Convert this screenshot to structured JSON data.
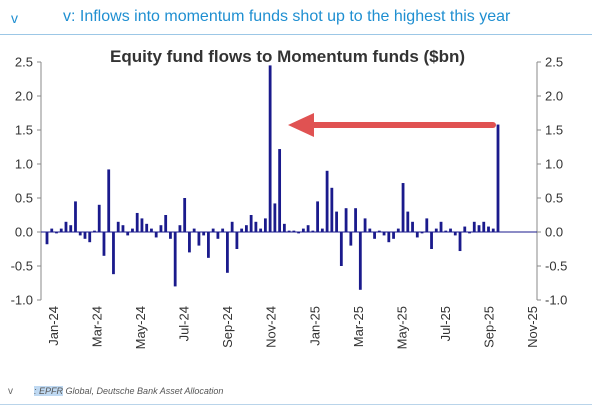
{
  "header": {
    "letter": "v",
    "title": "v: Inflows into momentum funds shot up to the highest this year"
  },
  "chart_data": {
    "type": "bar",
    "title": "Equity fund flows to Momentum funds ($bn)",
    "ylim": [
      -1.0,
      2.5
    ],
    "yticks": [
      "2.5",
      "2.0",
      "1.5",
      "1.0",
      "0.5",
      "0.0",
      "-0.5",
      "-1.0"
    ],
    "ytick_values": [
      2.5,
      2.0,
      1.5,
      1.0,
      0.5,
      0.0,
      -0.5,
      -1.0
    ],
    "xticks": [
      "Jan-24",
      "Mar-24",
      "May-24",
      "Jul-24",
      "Sep-24",
      "Nov-24",
      "Jan-25",
      "Mar-25",
      "May-25",
      "Jul-25",
      "Sep-25",
      "Nov-25"
    ],
    "x_range_months": [
      "Jan-24",
      "Nov-25"
    ],
    "bar_color": "#1a1a8c",
    "annotation_arrow_color": "#e05252",
    "grid": false,
    "legend": "none",
    "values": [
      -0.18,
      0.05,
      -0.02,
      0.05,
      0.15,
      0.1,
      0.45,
      -0.05,
      -0.1,
      -0.15,
      0.02,
      0.4,
      -0.35,
      0.92,
      -0.62,
      0.15,
      0.1,
      -0.05,
      0.05,
      0.28,
      0.2,
      0.12,
      0.05,
      -0.08,
      0.1,
      0.25,
      -0.1,
      -0.8,
      0.1,
      0.5,
      -0.3,
      0.05,
      -0.2,
      -0.05,
      -0.38,
      0.05,
      -0.1,
      0.05,
      -0.6,
      0.15,
      -0.25,
      0.05,
      0.1,
      0.25,
      0.15,
      0.05,
      0.2,
      2.45,
      0.42,
      1.22,
      0.12,
      0.02,
      0.02,
      -0.02,
      0.05,
      0.1,
      0.02,
      0.45,
      0.05,
      0.9,
      0.65,
      0.3,
      -0.5,
      0.35,
      -0.2,
      0.35,
      -0.85,
      0.2,
      0.05,
      -0.1,
      0.02,
      -0.05,
      -0.15,
      -0.1,
      0.05,
      0.72,
      0.3,
      0.15,
      -0.08,
      -0.02,
      0.2,
      -0.25,
      0.05,
      0.15,
      0.02,
      0.05,
      -0.05,
      -0.28,
      0.08,
      -0.02,
      0.15,
      0.1,
      0.15,
      0.08,
      0.05,
      1.58
    ]
  },
  "footer": {
    "letter": "v",
    "source_prefix": ": EPFR",
    "source_rest": " Global, Deutsche Bank Asset Allocation"
  }
}
